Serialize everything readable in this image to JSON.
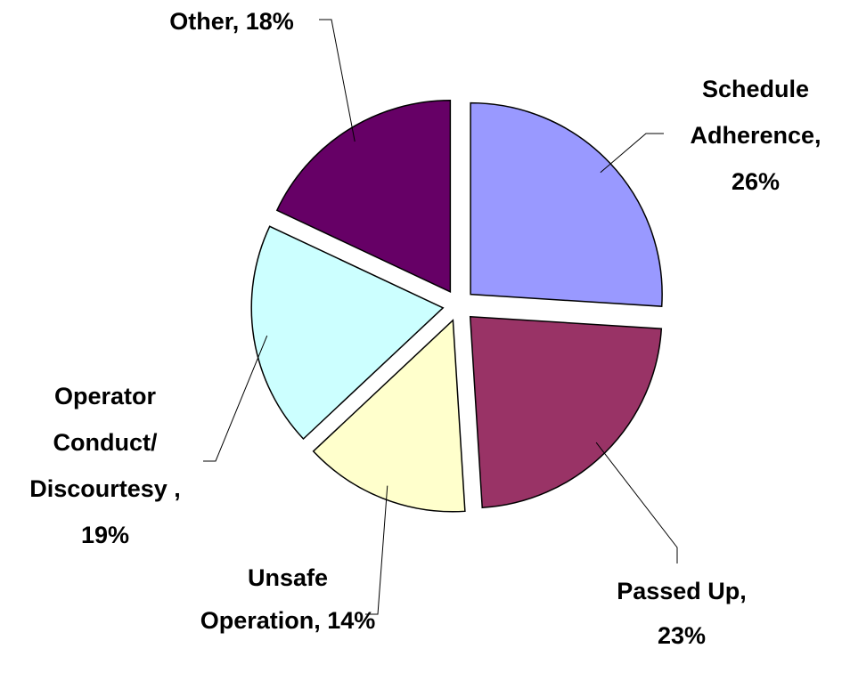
{
  "chart_data": {
    "type": "pie",
    "values": [
      26,
      23,
      14,
      19,
      18
    ],
    "value_labels": [
      "Schedule Adherence, 26%",
      "Passed Up, 23%",
      "Unsafe Operation, 14%",
      "Operator Conduct/ Discourtesy , 19%",
      "Other, 18%"
    ],
    "colors": [
      "#9999ff",
      "#993366",
      "#ffffcc",
      "#ccffff",
      "#660066"
    ],
    "exploded": true
  }
}
